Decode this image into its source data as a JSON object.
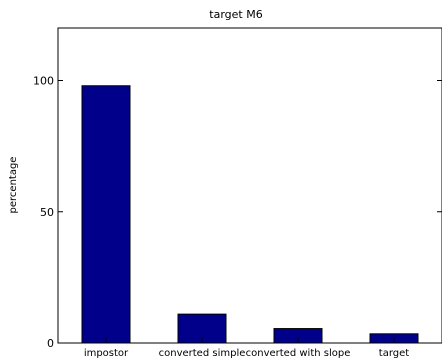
{
  "chart_data": {
    "type": "bar",
    "title": "target M6",
    "xlabel": "",
    "ylabel": "percentage",
    "categories": [
      "impostor",
      "converted simple",
      "converted with slope",
      "target"
    ],
    "series": [
      {
        "values": [
          98,
          11,
          5.5,
          3.5
        ]
      }
    ],
    "ylim": [
      0,
      120
    ],
    "yticks": [
      0,
      50,
      100
    ],
    "grid": false,
    "bar_color": "#00008b",
    "axis_color": "#000000",
    "background": "#ffffff"
  }
}
